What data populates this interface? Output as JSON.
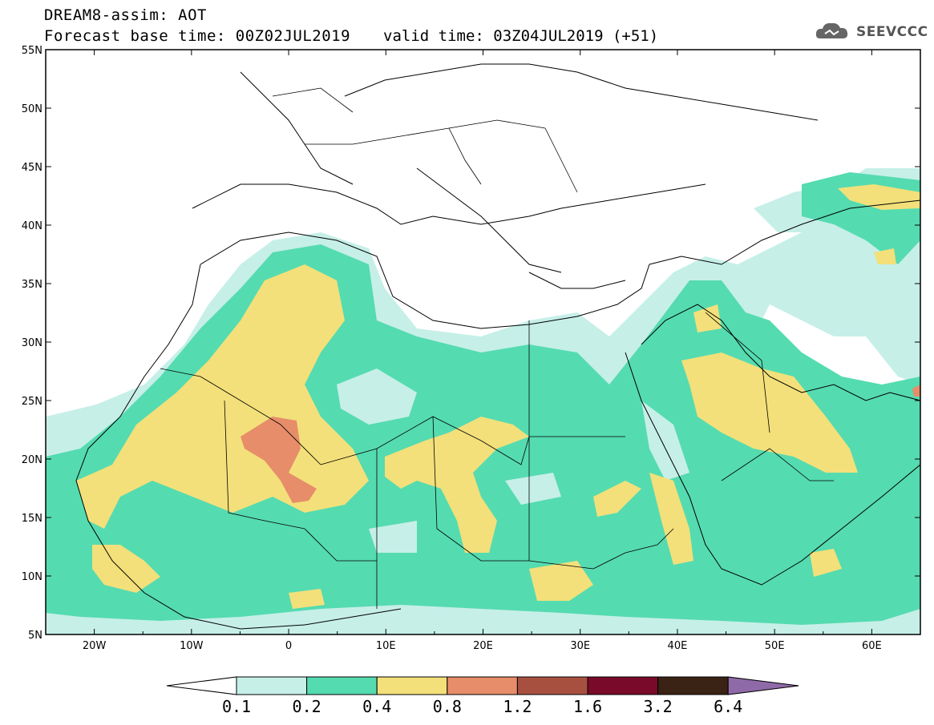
{
  "header": {
    "line1": "DREAM8-assim: AOT",
    "line2": "Forecast base time: 00Z02JUL2019",
    "valid": "valid time: 03Z04JUL2019 (+51)",
    "logo": "SEEVCCC",
    "logo_icon": "cloud-icon"
  },
  "map": {
    "lon_range": [
      -25,
      65
    ],
    "lat_range": [
      5,
      55
    ],
    "lon_ticks": [
      "20W",
      "10W",
      "0",
      "10E",
      "20E",
      "30E",
      "40E",
      "50E",
      "60E"
    ],
    "lat_ticks": [
      "55N",
      "50N",
      "45N",
      "40N",
      "35N",
      "30N",
      "25N",
      "20N",
      "15N",
      "10N",
      "5N"
    ]
  },
  "colorbar": {
    "labels": [
      "0.1",
      "0.2",
      "0.4",
      "0.8",
      "1.2",
      "1.6",
      "3.2",
      "6.4"
    ],
    "colors": [
      "#c6efe8",
      "#55dbb0",
      "#f3e07a",
      "#e78d6a",
      "#a85040",
      "#7a0a2a",
      "#3a2214",
      "#8f6aa8"
    ]
  }
}
